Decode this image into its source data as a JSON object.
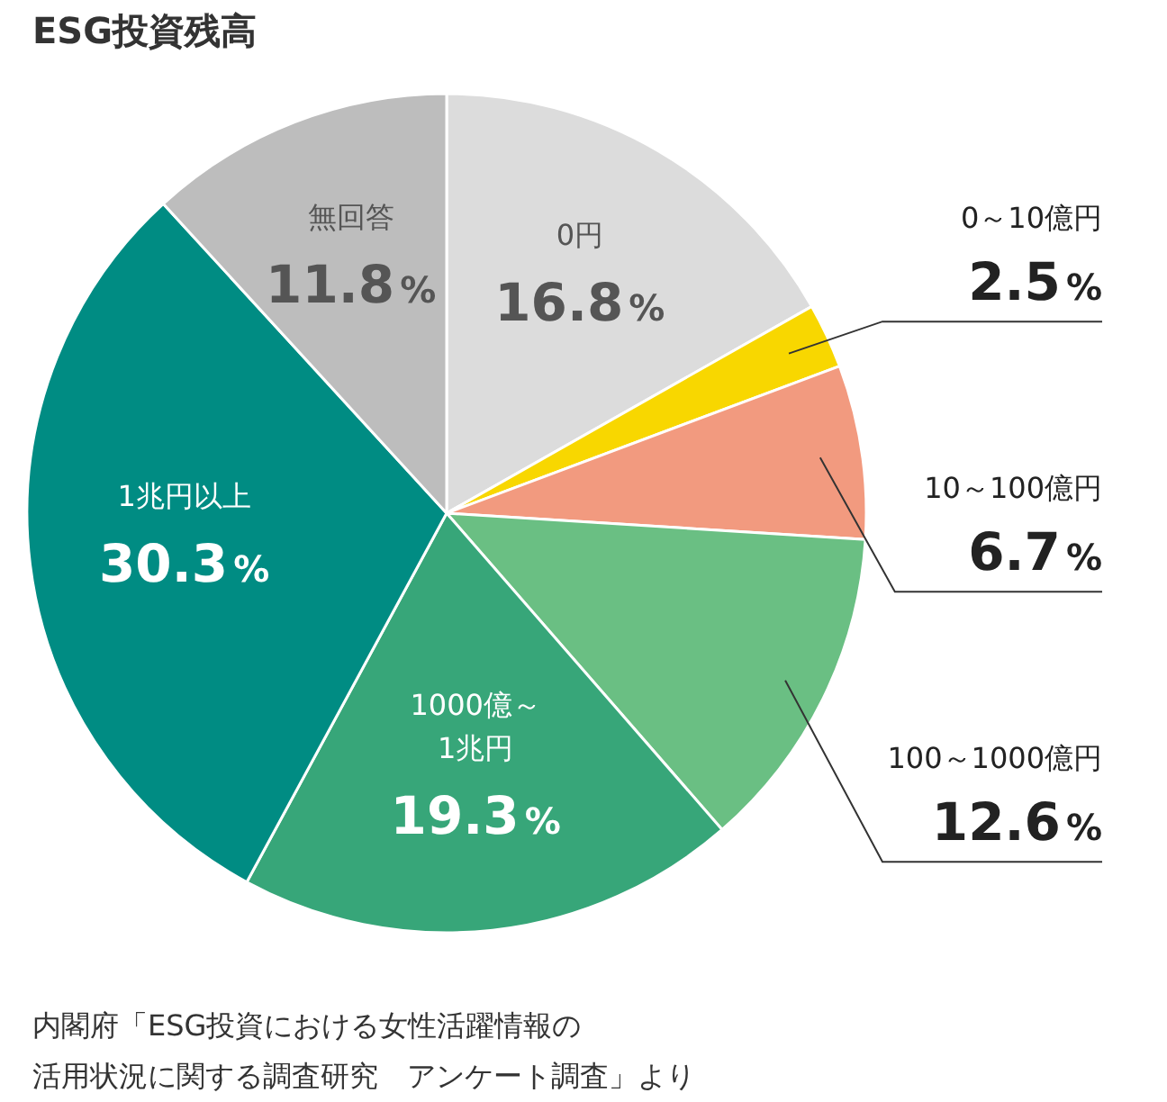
{
  "chart_data": {
    "type": "pie",
    "title": "ESG投資残高",
    "categories": [
      "0円",
      "0～10億円",
      "10～100億円",
      "100～1000億円",
      "1000億～\n1兆円",
      "1兆円以上",
      "無回答"
    ],
    "values": [
      16.8,
      2.5,
      6.7,
      12.6,
      19.3,
      30.3,
      11.8
    ],
    "colors": [
      "#dcdcdc",
      "#f8d700",
      "#f29a7f",
      "#6abf83",
      "#37a679",
      "#008c83",
      "#bdbdbd"
    ],
    "value_labels": [
      "16.8%",
      "2.5%",
      "6.7%",
      "12.6%",
      "19.3%",
      "30.3%",
      "11.8%"
    ],
    "annotations": [
      "内閣府「ESG投資における女性活躍情報の",
      "活用状況に関する調査研究　アンケート調査」より"
    ]
  }
}
